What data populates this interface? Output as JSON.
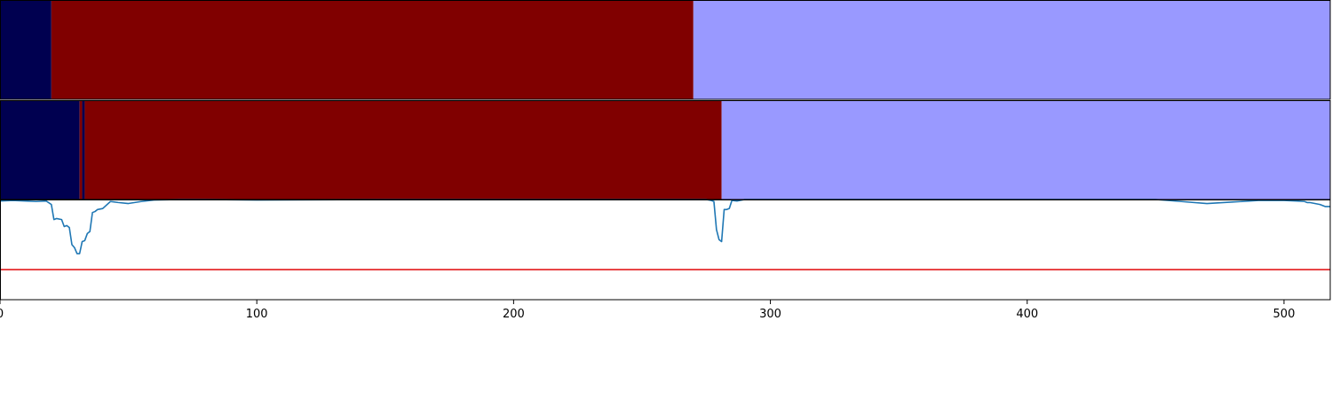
{
  "chart_data": {
    "type": "heatmap",
    "xlim": [
      0,
      518
    ],
    "x_ticks": [
      "0",
      "100",
      "200",
      "300",
      "400",
      "500"
    ],
    "x_tick_values": [
      0,
      100,
      200,
      300,
      400,
      500
    ],
    "colors": {
      "class_0": "#000050",
      "class_1": "#800000",
      "class_2": "#9999ff",
      "line": "#1f77b4",
      "threshold": "#e31a1c",
      "frame": "#000000"
    },
    "segmentation_rows": [
      {
        "segments": [
          {
            "start": 0,
            "end": 20,
            "class": "class_0"
          },
          {
            "start": 20,
            "end": 270,
            "class": "class_1"
          },
          {
            "start": 270,
            "end": 518,
            "class": "class_2"
          }
        ]
      },
      {
        "segments": [
          {
            "start": 0,
            "end": 31,
            "class": "class_0"
          },
          {
            "start": 31,
            "end": 32,
            "class": "class_1"
          },
          {
            "start": 32,
            "end": 33,
            "class": "class_0"
          },
          {
            "start": 33,
            "end": 281,
            "class": "class_1"
          },
          {
            "start": 281,
            "end": 518,
            "class": "class_2"
          }
        ]
      }
    ],
    "line_panel": {
      "ylim": [
        0,
        1
      ],
      "threshold": 0.3,
      "series": [
        {
          "x": [
            0,
            5,
            10,
            14,
            18,
            20,
            21,
            22,
            24,
            25,
            26,
            27,
            28,
            29,
            30,
            31,
            32,
            33,
            34,
            35,
            36,
            37,
            38,
            40,
            43,
            46,
            50,
            55,
            60,
            70,
            80,
            100,
            150,
            200,
            250,
            260,
            270,
            275,
            277,
            278,
            279,
            280,
            281,
            282,
            283,
            284,
            285,
            287,
            290,
            293,
            300,
            350,
            400,
            450,
            460,
            470,
            480,
            490,
            500,
            505,
            508,
            509,
            510,
            512,
            514,
            516,
            518
          ],
          "y": [
            0.985,
            0.99,
            0.985,
            0.98,
            0.985,
            0.95,
            0.8,
            0.81,
            0.8,
            0.73,
            0.74,
            0.72,
            0.55,
            0.52,
            0.46,
            0.46,
            0.58,
            0.59,
            0.66,
            0.68,
            0.87,
            0.88,
            0.9,
            0.91,
            0.98,
            0.97,
            0.96,
            0.98,
            0.995,
            1.0,
            1.0,
            0.995,
            1.0,
            1.0,
            1.0,
            1.0,
            1.0,
            1.0,
            0.99,
            0.98,
            0.7,
            0.6,
            0.58,
            0.9,
            0.9,
            0.91,
            0.99,
            0.985,
            1.0,
            1.0,
            1.0,
            1.0,
            1.0,
            1.0,
            0.98,
            0.96,
            0.975,
            0.99,
            0.99,
            0.985,
            0.98,
            0.97,
            0.97,
            0.96,
            0.95,
            0.93,
            0.93
          ]
        }
      ]
    }
  }
}
